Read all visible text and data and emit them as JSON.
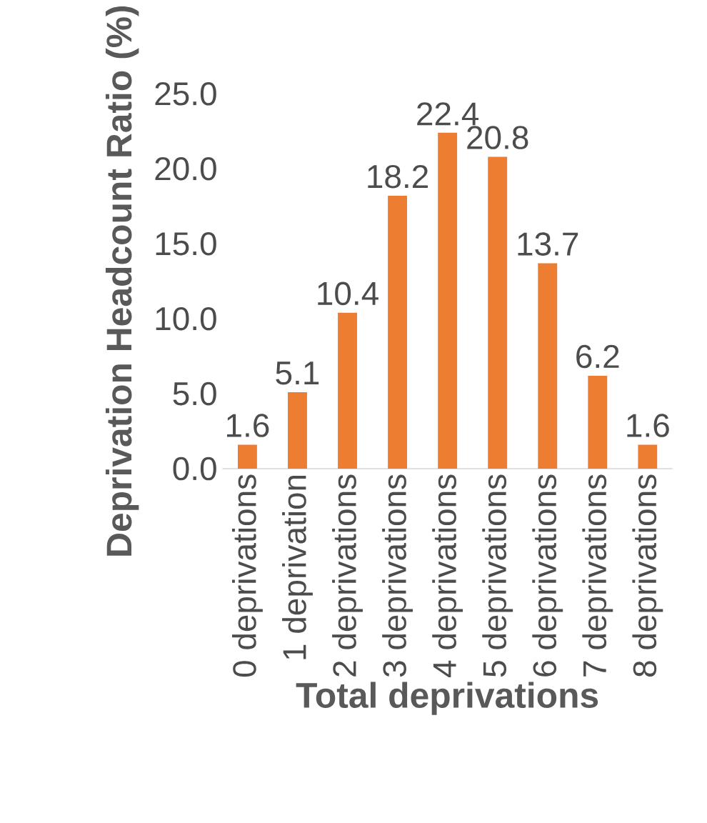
{
  "chart_data": {
    "type": "bar",
    "xlabel": "Total deprivations",
    "ylabel": "Deprivation Headcount Ratio (%)",
    "categories": [
      "0 deprivations",
      "1 deprivation",
      "2 deprivations",
      "3 deprivations",
      "4 deprivations",
      "5 deprivations",
      "6 deprivations",
      "7 deprivations",
      "8 deprivations"
    ],
    "values": [
      1.6,
      5.1,
      10.4,
      18.2,
      22.4,
      20.8,
      13.7,
      6.2,
      1.6
    ],
    "color": "#ed7d31",
    "data_labels": true,
    "grid": false,
    "ylim": [
      0,
      25
    ],
    "yticks": [
      {
        "value": 0,
        "label": "0.0"
      },
      {
        "value": 5,
        "label": "5.0"
      },
      {
        "value": 10,
        "label": "10.0"
      },
      {
        "value": 15,
        "label": "15.0"
      },
      {
        "value": 20,
        "label": "20.0"
      },
      {
        "value": 25,
        "label": "25.0"
      }
    ]
  }
}
